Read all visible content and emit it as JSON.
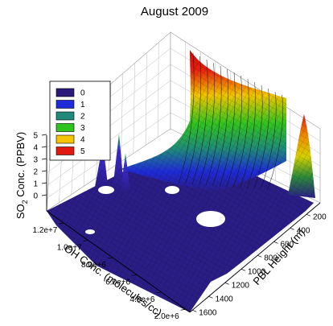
{
  "chart_data": {
    "type": "surface",
    "title": "August 2009",
    "zlabel": {
      "prefix": "SO",
      "sub": "2",
      "suffix": " Conc. (PPBV)"
    },
    "xlabel": "PBL Height (m)",
    "ylabel": "OH Conc. (molecules/cc)",
    "z_ticks": [
      "0",
      "1",
      "2",
      "3",
      "4",
      "5"
    ],
    "x_ticks": [
      "200",
      "400",
      "600",
      "800",
      "1000",
      "1200",
      "1400",
      "1600"
    ],
    "y_ticks": [
      "2.0e+6",
      "4.0e+6",
      "6.0e+6",
      "8.0e+6",
      "1.0e+7",
      "1.2e+7"
    ],
    "zlim": [
      0,
      5
    ],
    "legend": {
      "placement": "upper-left",
      "entries": [
        {
          "label": "0",
          "color": "#2b1a7a"
        },
        {
          "label": "1",
          "color": "#1f2bd8"
        },
        {
          "label": "2",
          "color": "#1f8a7a"
        },
        {
          "label": "3",
          "color": "#2fc41f"
        },
        {
          "label": "4",
          "color": "#f5c400"
        },
        {
          "label": "5",
          "color": "#e01a10"
        }
      ]
    },
    "grid": true
  }
}
